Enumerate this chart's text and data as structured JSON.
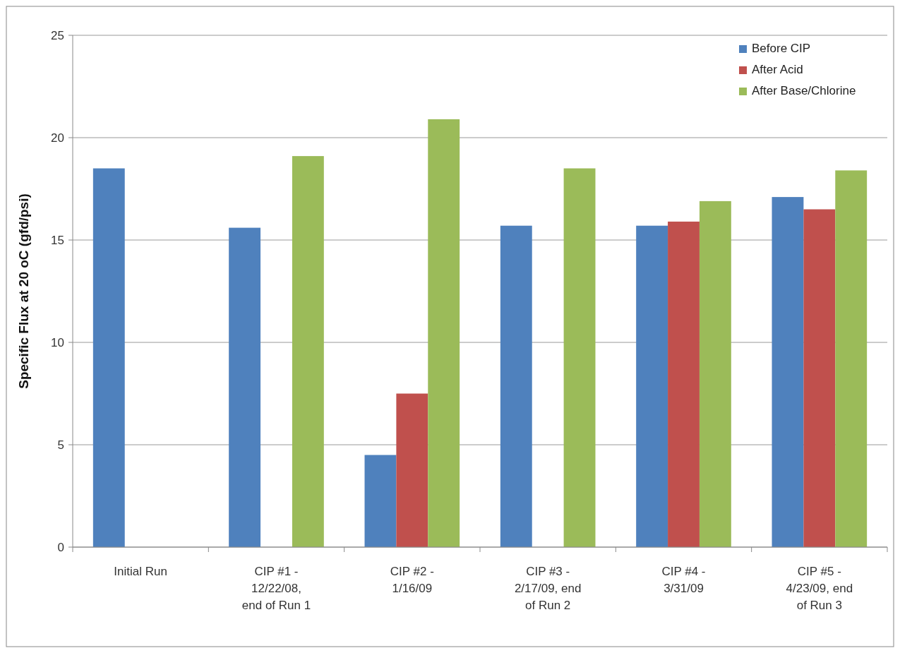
{
  "chart_data": {
    "type": "bar",
    "ylabel": "Specific Flux at 20 oC (gfd/psi)",
    "categories": [
      "Initial Run",
      "CIP #1 - 12/22/08, end of Run 1",
      "CIP #2 - 1/16/09",
      "CIP #3 - 2/17/09, end of Run 2",
      "CIP #4 - 3/31/09",
      "CIP #5 - 4/23/09, end of Run 3"
    ],
    "series": [
      {
        "name": "Before CIP",
        "color": "#4f81bd",
        "values": [
          18.5,
          15.6,
          4.5,
          15.7,
          15.7,
          17.1
        ]
      },
      {
        "name": "After Acid",
        "color": "#c0504d",
        "values": [
          null,
          null,
          7.5,
          null,
          15.9,
          16.5
        ]
      },
      {
        "name": "After Base/Chlorine",
        "color": "#9bbb59",
        "values": [
          null,
          19.1,
          20.9,
          18.5,
          16.9,
          18.4
        ]
      }
    ],
    "ylim": [
      0,
      25
    ],
    "yticks": [
      0,
      5,
      10,
      15,
      20,
      25
    ],
    "grid": "y",
    "legend": "top right"
  }
}
